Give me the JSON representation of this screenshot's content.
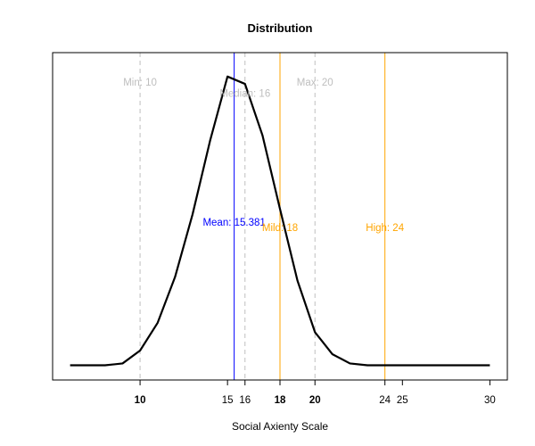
{
  "chart_data": {
    "type": "line",
    "title": "Distribution",
    "xlabel": "Social Axienty Scale",
    "ylabel": "",
    "xlim": [
      5,
      31
    ],
    "ylim": [
      0,
      0.178
    ],
    "y_axis_shown": false,
    "grid": false,
    "x": [
      6,
      8,
      9,
      10,
      11,
      12,
      13,
      14,
      15,
      16,
      17,
      18,
      19,
      20,
      21,
      22,
      23,
      24,
      25,
      26,
      27,
      28,
      29,
      30
    ],
    "y": [
      0.008,
      0.008,
      0.009,
      0.016,
      0.031,
      0.056,
      0.09,
      0.13,
      0.165,
      0.161,
      0.133,
      0.093,
      0.054,
      0.026,
      0.014,
      0.009,
      0.008,
      0.008,
      0.008,
      0.008,
      0.008,
      0.008,
      0.008,
      0.008
    ],
    "x_ticks": [
      {
        "value": 10,
        "label": "10",
        "bold": true
      },
      {
        "value": 15,
        "label": "15",
        "bold": false
      },
      {
        "value": 16,
        "label": "16",
        "bold": false
      },
      {
        "value": 18,
        "label": "18",
        "bold": true
      },
      {
        "value": 20,
        "label": "20",
        "bold": true
      },
      {
        "value": 24,
        "label": "24",
        "bold": false
      },
      {
        "value": 25,
        "label": "25",
        "bold": false
      },
      {
        "value": 30,
        "label": "30",
        "bold": false
      }
    ],
    "reference_lines": [
      {
        "x": 10,
        "label": "Min: 10",
        "color": "#bebebe",
        "style": "dashed",
        "label_y": 0.16
      },
      {
        "x": 16,
        "label": "Median: 16",
        "color": "#bebebe",
        "style": "dashed",
        "label_y": 0.154
      },
      {
        "x": 20,
        "label": "Max: 20",
        "color": "#bebebe",
        "style": "dashed",
        "label_y": 0.16
      },
      {
        "x": 15.381,
        "label": "Mean: 15.381",
        "color": "#0000ff",
        "style": "solid",
        "label_y": 0.084
      },
      {
        "x": 18,
        "label": "Mild: 18",
        "color": "#ffa500",
        "style": "solid",
        "label_y": 0.081
      },
      {
        "x": 24,
        "label": "High: 24",
        "color": "#ffa500",
        "style": "solid",
        "label_y": 0.081
      }
    ]
  }
}
